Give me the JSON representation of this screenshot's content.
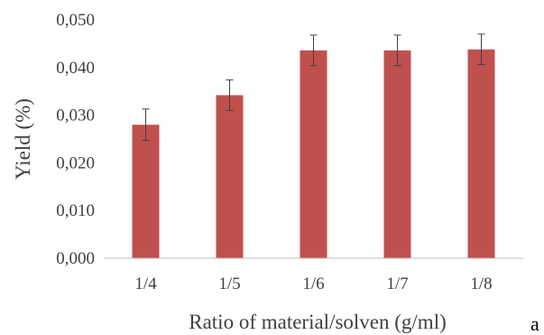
{
  "chart_data": {
    "type": "bar",
    "categories": [
      "1/4",
      "1/5",
      "1/6",
      "1/7",
      "1/8"
    ],
    "values": [
      0.028,
      0.0342,
      0.0436,
      0.0436,
      0.0438
    ],
    "errors": [
      0.0033,
      0.0032,
      0.0032,
      0.0032,
      0.0032
    ],
    "xlabel": "Ratio of material/solven  (g/ml)",
    "ylabel": "Yield (%)",
    "ylim": [
      0,
      0.05
    ],
    "yticks": [
      "0,000",
      "0,010",
      "0,020",
      "0,030",
      "0,040",
      "0,050"
    ],
    "grid": false,
    "legend": "none",
    "bar_color": "#c0504d",
    "panel_label": "a"
  }
}
